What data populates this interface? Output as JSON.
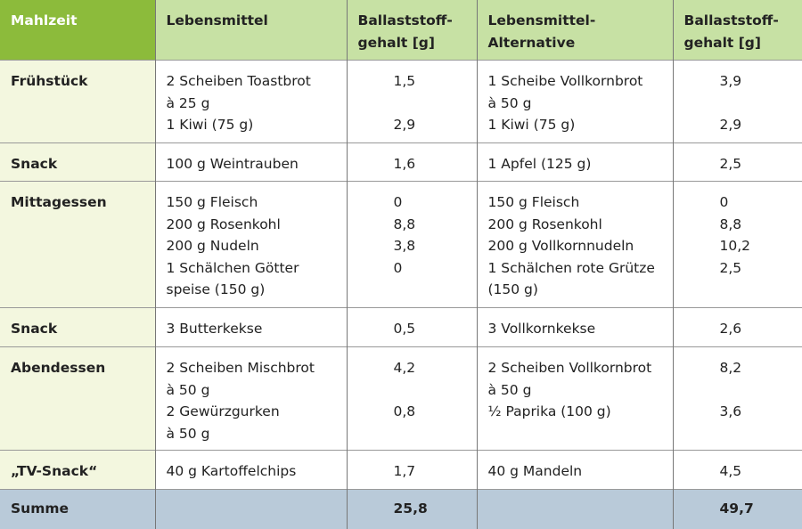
{
  "headers": [
    "Mahlzeit",
    "Lebensmittel",
    "Ballaststoff-\ngehalt [g]",
    "Lebensmittel-\nAlternative",
    "Ballaststoff-\ngehalt [g]"
  ],
  "rows": [
    {
      "meal": "Frühstück",
      "food": [
        "2 Scheiben Toastbrot",
        "à 25 g",
        "1 Kiwi (75 g)"
      ],
      "fiber": [
        "1,5",
        "",
        "2,9"
      ],
      "alt": [
        "1 Scheibe Vollkornbrot",
        "à 50 g",
        "1 Kiwi (75 g)"
      ],
      "alt_fiber": [
        "3,9",
        "",
        "2,9"
      ]
    },
    {
      "meal": "Snack",
      "food": [
        "100 g Weintrauben"
      ],
      "fiber": [
        "1,6"
      ],
      "alt": [
        "1 Apfel (125 g)"
      ],
      "alt_fiber": [
        "2,5"
      ]
    },
    {
      "meal": "Mittagessen",
      "food": [
        "150 g Fleisch",
        "200 g Rosenkohl",
        "200 g Nudeln",
        "1 Schälchen Götter",
        "speise (150 g)"
      ],
      "fiber": [
        "0",
        "8,8",
        "3,8",
        "0",
        ""
      ],
      "alt": [
        "150 g Fleisch",
        "200 g Rosenkohl",
        "200 g Vollkornnudeln",
        "1 Schälchen rote Grütze",
        "(150 g)"
      ],
      "alt_fiber": [
        "0",
        "8,8",
        "10,2",
        "2,5",
        ""
      ]
    },
    {
      "meal": "Snack",
      "food": [
        "3 Butterkekse"
      ],
      "fiber": [
        "0,5"
      ],
      "alt": [
        "3 Vollkornkekse"
      ],
      "alt_fiber": [
        "2,6"
      ]
    },
    {
      "meal": "Abendessen",
      "food": [
        "2 Scheiben Mischbrot",
        "à 50 g",
        "2 Gewürzgurken",
        "à 50 g"
      ],
      "fiber": [
        "4,2",
        "",
        "0,8",
        ""
      ],
      "alt": [
        "2 Scheiben Vollkornbrot",
        "à 50 g",
        "½ Paprika (100 g)",
        ""
      ],
      "alt_fiber": [
        "8,2",
        "",
        "3,6",
        ""
      ]
    },
    {
      "meal": "„TV-Snack“",
      "food": [
        "40 g Kartoffelchips"
      ],
      "fiber": [
        "1,7"
      ],
      "alt": [
        "40 g Mandeln"
      ],
      "alt_fiber": [
        "4,5"
      ]
    }
  ],
  "sum": {
    "label": "Summe",
    "fiber": "25,8",
    "alt_fiber": "49,7"
  }
}
